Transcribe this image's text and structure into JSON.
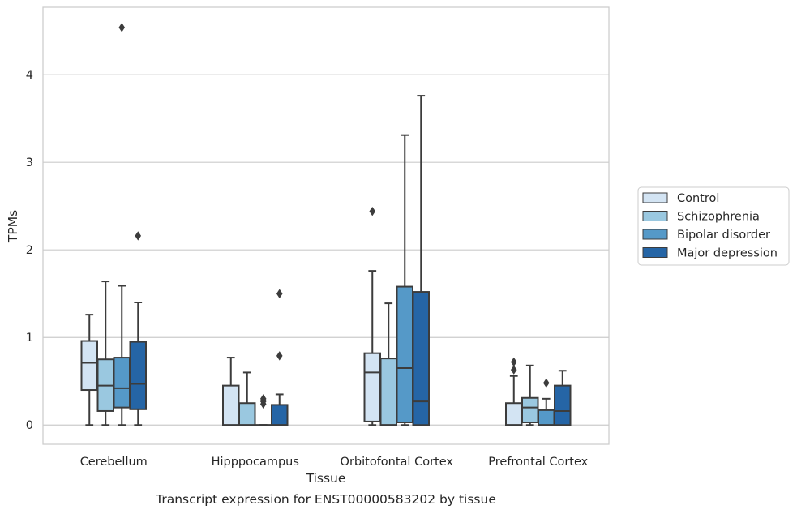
{
  "colors": {
    "Control": "#d3e4f3",
    "Schizophrenia": "#9ac8e0",
    "Bipolar disorder": "#5599c8",
    "Major depression": "#2565a6",
    "edge": "#3c3c3c",
    "grid": "#cccccc",
    "frame": "#cccccc"
  },
  "chart_data": {
    "type": "boxplot",
    "title": "Transcript expression for ENST00000583202 by tissue",
    "xlabel": "Tissue",
    "ylabel": "TPMs",
    "ylim": [
      -0.22,
      4.77
    ],
    "yticks": [
      0,
      1,
      2,
      3,
      4
    ],
    "grid": true,
    "legend_position": "right",
    "categories": [
      "Cerebellum",
      "Hipppocampus",
      "Orbitofontal Cortex",
      "Prefrontal Cortex"
    ],
    "series": [
      {
        "name": "Control",
        "boxes": [
          {
            "whislo": 0.0,
            "q1": 0.4,
            "med": 0.71,
            "q3": 0.96,
            "whishi": 1.26,
            "fliers": []
          },
          {
            "whislo": 0.0,
            "q1": 0.0,
            "med": 0.0,
            "q3": 0.45,
            "whishi": 0.77,
            "fliers": []
          },
          {
            "whislo": 0.0,
            "q1": 0.04,
            "med": 0.6,
            "q3": 0.82,
            "whishi": 1.76,
            "fliers": [
              2.44
            ]
          },
          {
            "whislo": 0.0,
            "q1": 0.0,
            "med": 0.0,
            "q3": 0.25,
            "whishi": 0.56,
            "fliers": [
              0.63,
              0.72
            ]
          }
        ]
      },
      {
        "name": "Schizophrenia",
        "boxes": [
          {
            "whislo": 0.0,
            "q1": 0.16,
            "med": 0.45,
            "q3": 0.75,
            "whishi": 1.64,
            "fliers": []
          },
          {
            "whislo": 0.0,
            "q1": 0.0,
            "med": 0.0,
            "q3": 0.25,
            "whishi": 0.6,
            "fliers": []
          },
          {
            "whislo": 0.0,
            "q1": 0.0,
            "med": 0.0,
            "q3": 0.76,
            "whishi": 1.39,
            "fliers": []
          },
          {
            "whislo": 0.0,
            "q1": 0.03,
            "med": 0.2,
            "q3": 0.31,
            "whishi": 0.68,
            "fliers": []
          }
        ]
      },
      {
        "name": "Bipolar disorder",
        "boxes": [
          {
            "whislo": 0.0,
            "q1": 0.2,
            "med": 0.42,
            "q3": 0.77,
            "whishi": 1.59,
            "fliers": [
              4.54
            ]
          },
          {
            "whislo": 0.0,
            "q1": 0.0,
            "med": 0.0,
            "q3": 0.0,
            "whishi": 0.0,
            "fliers": [
              0.24,
              0.27,
              0.3
            ]
          },
          {
            "whislo": 0.0,
            "q1": 0.03,
            "med": 0.65,
            "q3": 1.58,
            "whishi": 3.31,
            "fliers": []
          },
          {
            "whislo": 0.0,
            "q1": 0.0,
            "med": 0.0,
            "q3": 0.17,
            "whishi": 0.3,
            "fliers": [
              0.48
            ]
          }
        ]
      },
      {
        "name": "Major depression",
        "boxes": [
          {
            "whislo": 0.0,
            "q1": 0.18,
            "med": 0.47,
            "q3": 0.95,
            "whishi": 1.4,
            "fliers": [
              2.16
            ]
          },
          {
            "whislo": 0.0,
            "q1": 0.0,
            "med": 0.0,
            "q3": 0.23,
            "whishi": 0.35,
            "fliers": [
              0.79,
              1.5
            ]
          },
          {
            "whislo": 0.0,
            "q1": 0.0,
            "med": 0.27,
            "q3": 1.52,
            "whishi": 3.76,
            "fliers": []
          },
          {
            "whislo": 0.0,
            "q1": 0.0,
            "med": 0.16,
            "q3": 0.45,
            "whishi": 0.62,
            "fliers": []
          }
        ]
      }
    ]
  }
}
